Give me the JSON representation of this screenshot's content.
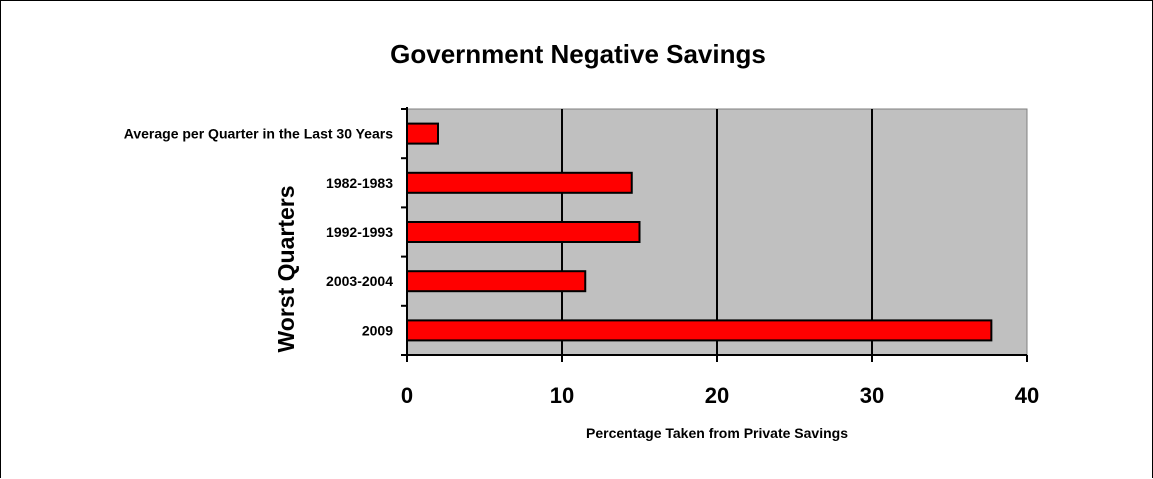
{
  "chart_data": {
    "type": "bar",
    "orientation": "horizontal",
    "title": "Government Negative Savings",
    "xlabel": "Percentage Taken from Private Savings",
    "ylabel": "Worst Quarters",
    "categories": [
      "Average per Quarter in the Last 30 Years",
      "1982-1983",
      "1992-1993",
      "2003-2004",
      "2009"
    ],
    "values": [
      2,
      14.5,
      15,
      11.5,
      37.7
    ],
    "xlim": [
      0,
      40
    ],
    "xticks": [
      "0",
      "10",
      "20",
      "30",
      "40"
    ],
    "grid": "vertical",
    "colors": {
      "bar": "#ff0000",
      "plot_background": "#c0c0c0",
      "grid": "#000000"
    }
  }
}
